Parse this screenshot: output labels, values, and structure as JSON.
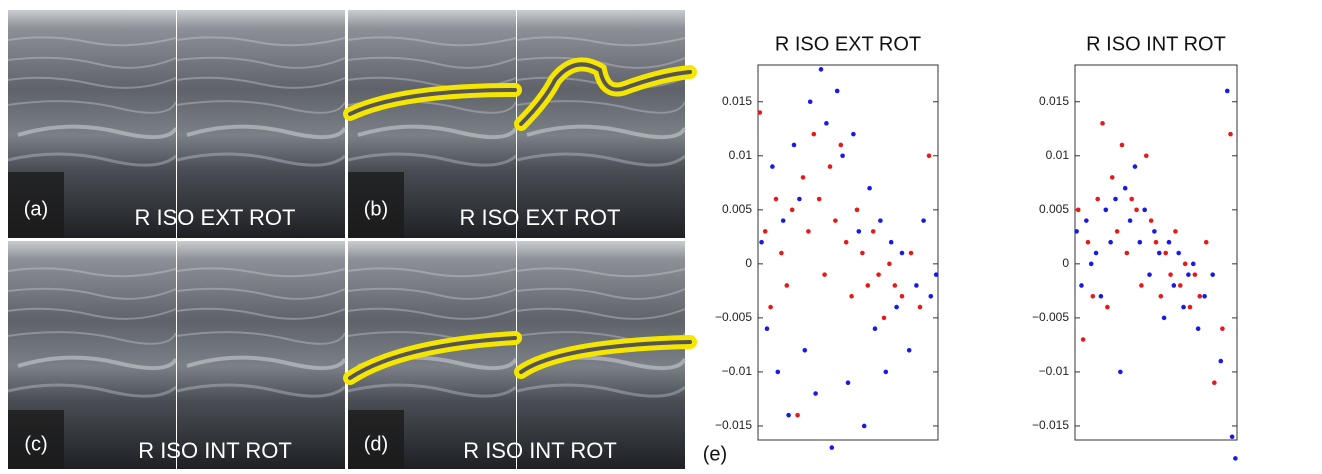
{
  "panels": [
    {
      "label": "(a)",
      "caption": "R ISO EXT ROT"
    },
    {
      "label": "(b)",
      "caption": "R ISO EXT ROT"
    },
    {
      "label": "(c)",
      "caption": "R ISO INT ROT"
    },
    {
      "label": "(d)",
      "caption": "R ISO INT ROT"
    }
  ],
  "e_label": "(e)",
  "chart_data": [
    {
      "type": "scatter",
      "title": "R ISO EXT ROT",
      "xlim": [
        0,
        100
      ],
      "ylim": [
        -0.0163,
        0.0184
      ],
      "yticks": [
        0.015,
        0.01,
        0.005,
        0,
        {
          "value": -0.005,
          "label": "−0.005"
        },
        {
          "value": -0.01,
          "label": "−0.01"
        },
        {
          "value": -0.015,
          "label": "−0.015"
        }
      ],
      "series": [
        {
          "color": "#1a1ae6",
          "x": [
            2,
            5,
            8,
            11,
            14,
            17,
            20,
            23,
            26,
            29,
            32,
            35,
            38,
            41,
            44,
            47,
            50,
            53,
            56,
            59,
            62,
            65,
            68,
            71,
            74,
            77,
            80,
            84,
            88,
            92,
            96,
            99
          ],
          "values": [
            0.002,
            -0.006,
            0.009,
            -0.01,
            0.004,
            -0.014,
            0.011,
            0.006,
            -0.008,
            0.015,
            -0.012,
            0.018,
            0.013,
            -0.017,
            0.016,
            0.01,
            -0.011,
            0.012,
            0.003,
            -0.015,
            0.007,
            -0.006,
            0.004,
            -0.01,
            0.002,
            -0.004,
            0.001,
            -0.008,
            -0.002,
            0.004,
            -0.003,
            -0.001
          ]
        },
        {
          "color": "#e61a1a",
          "x": [
            1,
            4,
            7,
            10,
            13,
            16,
            19,
            22,
            25,
            28,
            31,
            34,
            37,
            40,
            43,
            46,
            49,
            52,
            55,
            58,
            61,
            64,
            67,
            70,
            73,
            76,
            80,
            85,
            90,
            95
          ],
          "values": [
            0.014,
            0.003,
            -0.004,
            0.006,
            0.001,
            -0.002,
            0.005,
            -0.014,
            0.008,
            0.003,
            0.012,
            0.006,
            -0.001,
            0.009,
            0.004,
            0.011,
            0.002,
            -0.003,
            0.005,
            0.001,
            -0.002,
            0.003,
            -0.001,
            -0.005,
            0,
            -0.002,
            -0.003,
            0.001,
            -0.004,
            0.01
          ]
        }
      ]
    },
    {
      "type": "scatter",
      "title": "R ISO INT ROT",
      "xlim": [
        0,
        100
      ],
      "ylim": [
        -0.0163,
        0.0184
      ],
      "yticks": [
        0.015,
        0.01,
        0.005,
        0,
        {
          "value": -0.005,
          "label": "−0.005"
        },
        {
          "value": -0.01,
          "label": "−0.01"
        },
        {
          "value": -0.015,
          "label": "−0.015"
        }
      ],
      "series": [
        {
          "color": "#1a1ae6",
          "x": [
            1,
            4,
            7,
            10,
            13,
            16,
            19,
            22,
            25,
            28,
            31,
            34,
            37,
            40,
            43,
            46,
            49,
            52,
            55,
            58,
            61,
            64,
            67,
            70,
            73,
            76,
            80,
            85,
            90,
            94,
            97,
            99
          ],
          "values": [
            0.003,
            -0.002,
            0.004,
            0,
            0.001,
            -0.003,
            0.005,
            0.002,
            0.006,
            -0.01,
            0.007,
            0.004,
            0.009,
            0.002,
            0.005,
            -0.001,
            0.003,
            0.001,
            -0.005,
            0.002,
            -0.002,
            0.001,
            -0.004,
            -0.001,
            0,
            -0.006,
            -0.003,
            -0.001,
            -0.009,
            0.016,
            -0.016,
            -0.018
          ]
        },
        {
          "color": "#e61a1a",
          "x": [
            2,
            5,
            8,
            11,
            14,
            17,
            20,
            23,
            26,
            29,
            32,
            35,
            38,
            41,
            44,
            47,
            50,
            53,
            56,
            59,
            62,
            65,
            68,
            71,
            74,
            77,
            81,
            86,
            91,
            96
          ],
          "values": [
            0.005,
            -0.007,
            0.002,
            -0.003,
            0.006,
            0.013,
            -0.004,
            0.008,
            0.003,
            0.011,
            0.001,
            0.006,
            0.005,
            -0.002,
            0.01,
            0.004,
            0.002,
            -0.003,
            0.001,
            -0.001,
            0.003,
            -0.002,
            0,
            -0.004,
            -0.001,
            -0.003,
            0.002,
            -0.011,
            -0.006,
            0.012
          ]
        }
      ]
    }
  ]
}
